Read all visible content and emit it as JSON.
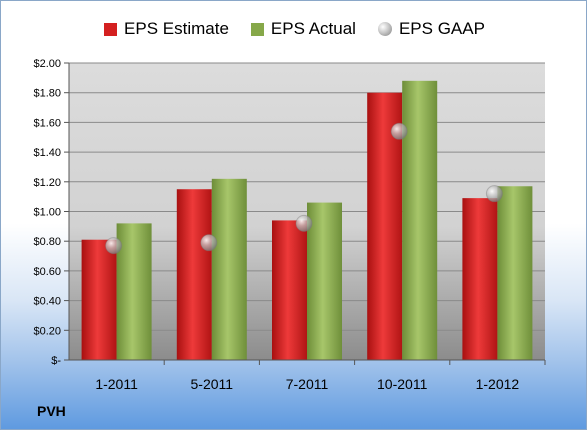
{
  "company": "PVH",
  "chart_data": {
    "type": "bar",
    "categories": [
      "1-2011",
      "5-2011",
      "7-2011",
      "10-2011",
      "1-2012"
    ],
    "series": [
      {
        "name": "EPS Estimate",
        "kind": "bar",
        "color": "#d42020",
        "values": [
          0.81,
          1.15,
          0.94,
          1.8,
          1.09
        ]
      },
      {
        "name": "EPS Actual",
        "kind": "bar",
        "color": "#86a849",
        "values": [
          0.92,
          1.22,
          1.06,
          1.88,
          1.17
        ]
      },
      {
        "name": "EPS GAAP",
        "kind": "marker",
        "color": "#a0a0a0",
        "values": [
          0.77,
          0.79,
          0.92,
          1.54,
          1.12
        ]
      }
    ],
    "ylim": [
      0,
      2.0
    ],
    "y_ticks": [
      {
        "value": 0,
        "label": "$-"
      },
      {
        "value": 0.2,
        "label": "$0.20"
      },
      {
        "value": 0.4,
        "label": "$0.40"
      },
      {
        "value": 0.6,
        "label": "$0.60"
      },
      {
        "value": 0.8,
        "label": "$0.80"
      },
      {
        "value": 1.0,
        "label": "$1.00"
      },
      {
        "value": 1.2,
        "label": "$1.20"
      },
      {
        "value": 1.4,
        "label": "$1.40"
      },
      {
        "value": 1.6,
        "label": "$1.60"
      },
      {
        "value": 1.8,
        "label": "$1.80"
      },
      {
        "value": 2.0,
        "label": "$2.00"
      }
    ],
    "grid": true,
    "legend_position": "top"
  }
}
